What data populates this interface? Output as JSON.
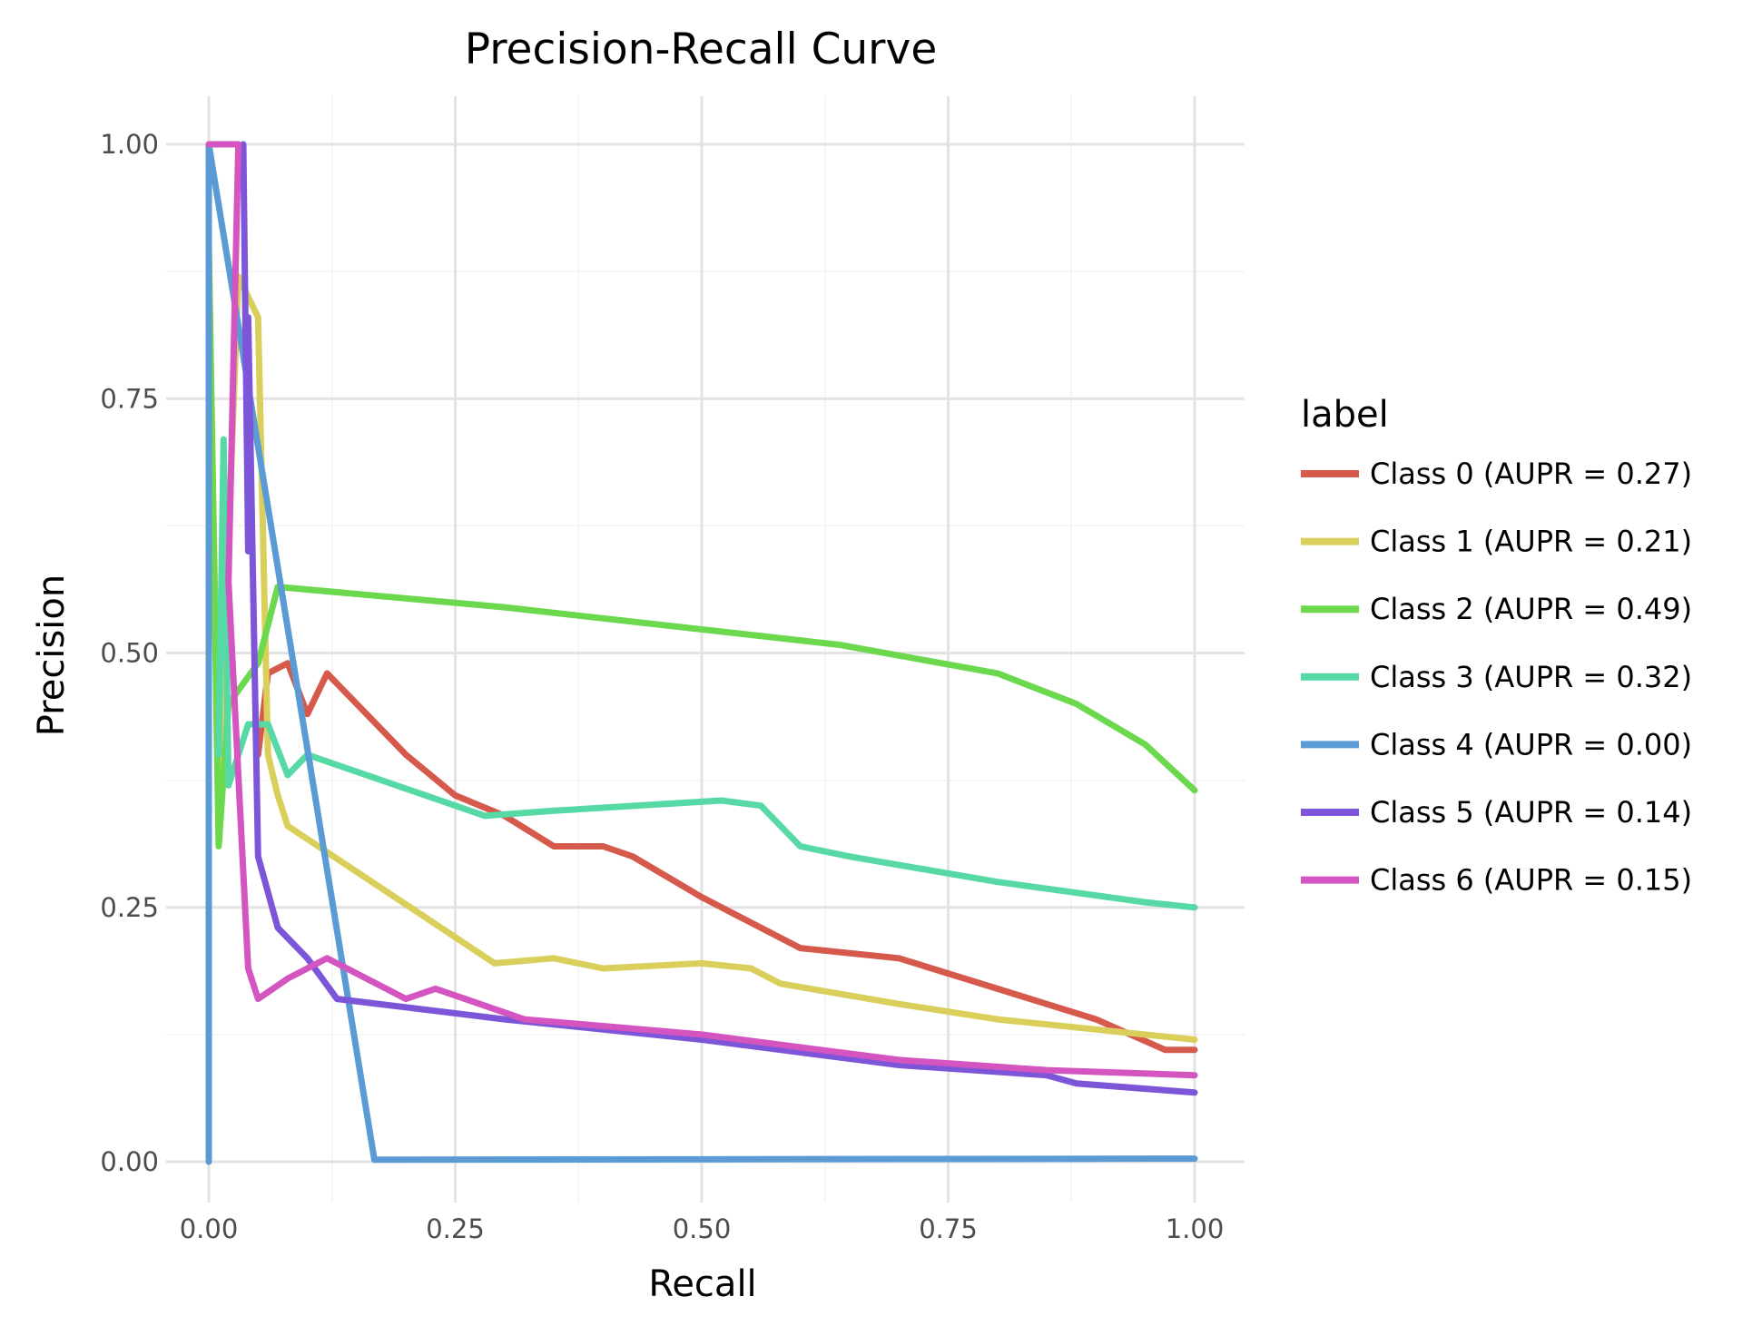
{
  "chart_data": {
    "type": "line",
    "title": "Precision-Recall Curve",
    "xlabel": "Recall",
    "ylabel": "Precision",
    "xlim": [
      0,
      1
    ],
    "ylim": [
      0,
      1
    ],
    "x_ticks": [
      "0.00",
      "0.25",
      "0.50",
      "0.75",
      "1.00"
    ],
    "y_ticks": [
      "0.00",
      "0.25",
      "0.50",
      "0.75",
      "1.00"
    ],
    "grid": true,
    "legend": {
      "title": "label",
      "placement": "right"
    },
    "series": [
      {
        "name": "Class 0 (AUPR = 0.27)",
        "color": "#d65a4c",
        "points": [
          [
            0.05,
            0.4
          ],
          [
            0.06,
            0.48
          ],
          [
            0.08,
            0.49
          ],
          [
            0.1,
            0.44
          ],
          [
            0.12,
            0.48
          ],
          [
            0.2,
            0.4
          ],
          [
            0.25,
            0.36
          ],
          [
            0.3,
            0.34
          ],
          [
            0.35,
            0.31
          ],
          [
            0.4,
            0.31
          ],
          [
            0.43,
            0.3
          ],
          [
            0.5,
            0.26
          ],
          [
            0.6,
            0.21
          ],
          [
            0.7,
            0.2
          ],
          [
            0.8,
            0.17
          ],
          [
            0.9,
            0.14
          ],
          [
            0.97,
            0.11
          ],
          [
            1.0,
            0.11
          ]
        ]
      },
      {
        "name": "Class 1 (AUPR = 0.21)",
        "color": "#d9cf5a",
        "points": [
          [
            0.0,
            0.9
          ],
          [
            0.01,
            0.35
          ],
          [
            0.03,
            0.87
          ],
          [
            0.05,
            0.83
          ],
          [
            0.06,
            0.4
          ],
          [
            0.07,
            0.36
          ],
          [
            0.08,
            0.33
          ],
          [
            0.29,
            0.195
          ],
          [
            0.35,
            0.2
          ],
          [
            0.4,
            0.19
          ],
          [
            0.5,
            0.195
          ],
          [
            0.55,
            0.19
          ],
          [
            0.58,
            0.175
          ],
          [
            0.7,
            0.155
          ],
          [
            0.8,
            0.14
          ],
          [
            0.9,
            0.13
          ],
          [
            1.0,
            0.12
          ]
        ]
      },
      {
        "name": "Class 2 (AUPR = 0.49)",
        "color": "#6bd84e",
        "points": [
          [
            0.0,
            0.9
          ],
          [
            0.01,
            0.31
          ],
          [
            0.02,
            0.45
          ],
          [
            0.05,
            0.49
          ],
          [
            0.07,
            0.565
          ],
          [
            0.3,
            0.545
          ],
          [
            0.64,
            0.508
          ],
          [
            0.8,
            0.48
          ],
          [
            0.88,
            0.45
          ],
          [
            0.95,
            0.41
          ],
          [
            1.0,
            0.365
          ]
        ]
      },
      {
        "name": "Class 3 (AUPR = 0.32)",
        "color": "#57d9a6",
        "points": [
          [
            0.01,
            0.4
          ],
          [
            0.015,
            0.71
          ],
          [
            0.02,
            0.37
          ],
          [
            0.04,
            0.43
          ],
          [
            0.06,
            0.43
          ],
          [
            0.08,
            0.38
          ],
          [
            0.1,
            0.4
          ],
          [
            0.28,
            0.34
          ],
          [
            0.35,
            0.345
          ],
          [
            0.52,
            0.355
          ],
          [
            0.56,
            0.35
          ],
          [
            0.6,
            0.31
          ],
          [
            0.65,
            0.3
          ],
          [
            0.8,
            0.275
          ],
          [
            0.95,
            0.255
          ],
          [
            1.0,
            0.25
          ]
        ]
      },
      {
        "name": "Class 4 (AUPR = 0.00)",
        "color": "#5b9bd5",
        "points": [
          [
            0.0,
            0.0
          ],
          [
            0.0,
            1.0
          ],
          [
            0.168,
            0.002
          ],
          [
            1.0,
            0.003
          ]
        ]
      },
      {
        "name": "Class 5 (AUPR = 0.14)",
        "color": "#7d55d9",
        "points": [
          [
            0.035,
            1.0
          ],
          [
            0.04,
            0.6
          ],
          [
            0.04,
            0.83
          ],
          [
            0.05,
            0.3
          ],
          [
            0.07,
            0.23
          ],
          [
            0.1,
            0.2
          ],
          [
            0.13,
            0.16
          ],
          [
            0.3,
            0.14
          ],
          [
            0.5,
            0.12
          ],
          [
            0.7,
            0.095
          ],
          [
            0.85,
            0.085
          ],
          [
            0.88,
            0.077
          ],
          [
            1.0,
            0.068
          ]
        ]
      },
      {
        "name": "Class 6 (AUPR = 0.15)",
        "color": "#d454c0",
        "points": [
          [
            0.0,
            1.0
          ],
          [
            0.03,
            1.0
          ],
          [
            0.02,
            0.57
          ],
          [
            0.04,
            0.19
          ],
          [
            0.05,
            0.16
          ],
          [
            0.08,
            0.18
          ],
          [
            0.12,
            0.2
          ],
          [
            0.2,
            0.16
          ],
          [
            0.23,
            0.17
          ],
          [
            0.32,
            0.14
          ],
          [
            0.5,
            0.125
          ],
          [
            0.7,
            0.1
          ],
          [
            0.85,
            0.09
          ],
          [
            1.0,
            0.085
          ]
        ]
      }
    ]
  }
}
